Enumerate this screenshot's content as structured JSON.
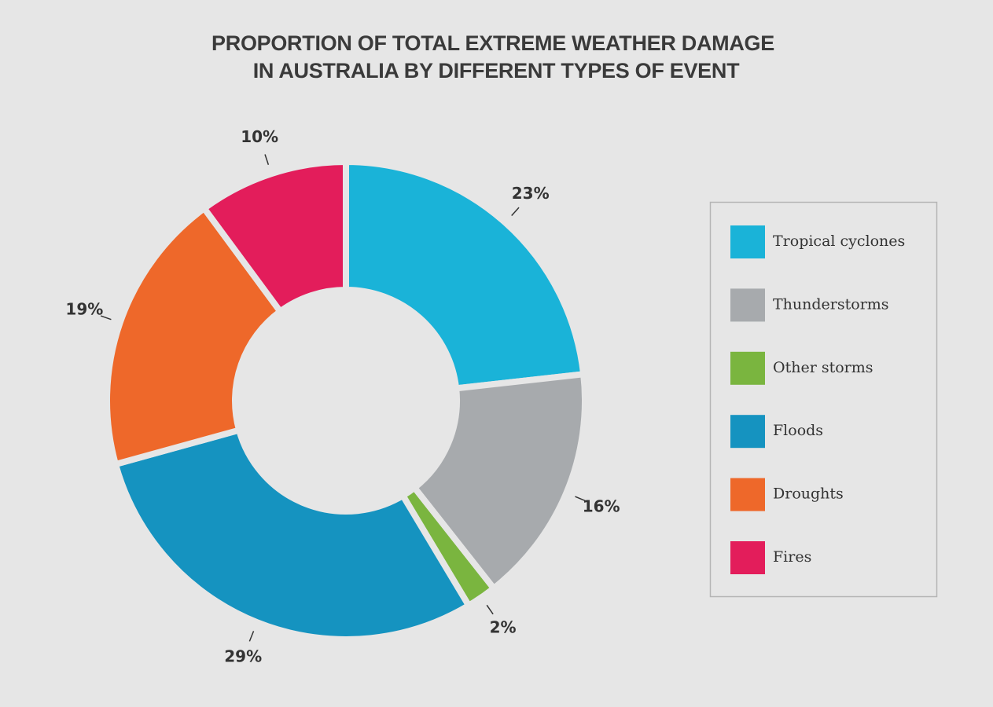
{
  "chart_data": {
    "type": "donut",
    "title": [
      "PROPORTION OF TOTAL EXTREME WEATHER DAMAGE",
      "IN AUSTRALIA BY DIFFERENT TYPES OF EVENT"
    ],
    "categories": [
      "Tropical cyclones",
      "Thunderstorms",
      "Other storms",
      "Floods",
      "Droughts",
      "Fires"
    ],
    "values": [
      23,
      16,
      2,
      29,
      19,
      10
    ],
    "value_labels": [
      "23%",
      "16%",
      "2%",
      "29%",
      "19%",
      "10%"
    ],
    "colors": [
      "#1ab3d8",
      "#a7aaad",
      "#7ab53f",
      "#1593c0",
      "#ee682a",
      "#e31d5b"
    ],
    "legend": "right"
  }
}
